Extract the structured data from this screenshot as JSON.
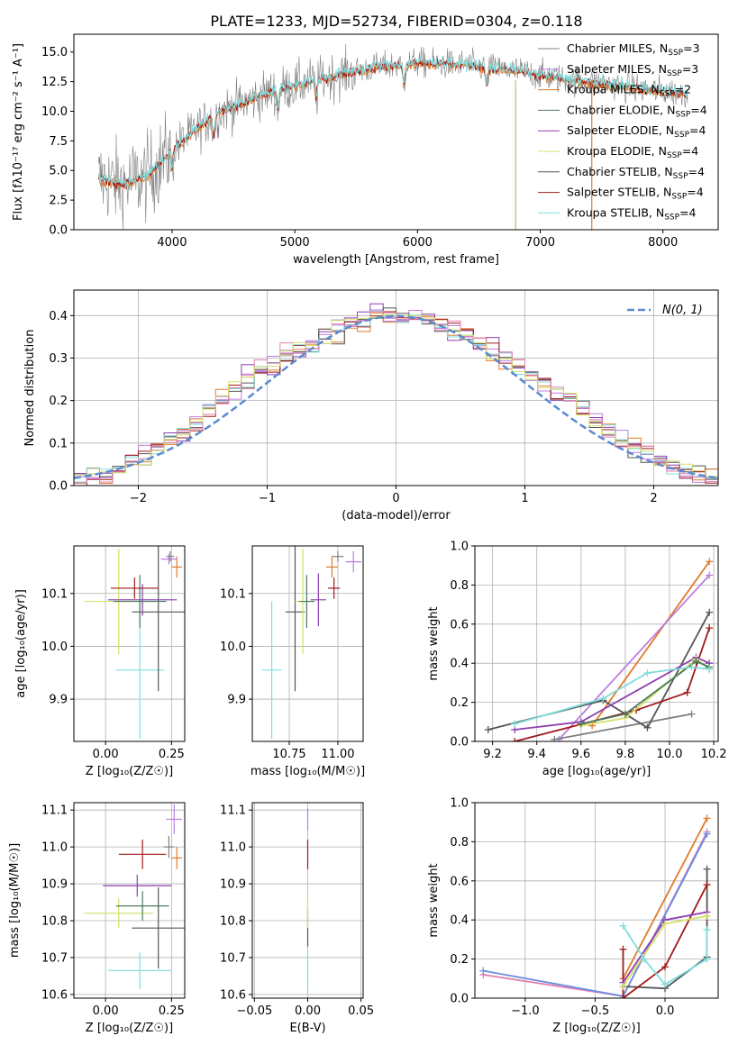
{
  "figure_title": "PLATE=1233, MJD=52734, FIBERID=0304, z=0.118",
  "colors": {
    "Chabrier MILES": "#808080",
    "Salpeter MILES": "#bb7fe0",
    "Kroupa MILES": "#e07b2a",
    "Chabrier ELODIE": "#4a7a5a",
    "Salpeter ELODIE": "#8e3fb0",
    "Kroupa ELODIE": "#d4e06a",
    "Chabrier STELIB": "#555555",
    "Salpeter STELIB": "#a01a1a",
    "Kroupa STELIB": "#7fdcdc",
    "normal_curve": "#5a8ad0",
    "pink_series": "#e07fb0",
    "blue_series": "#6a8ee0",
    "green_series": "#7cbf4a"
  },
  "chart_data": [
    {
      "id": "spectrum",
      "type": "line",
      "xlabel": "wavelength [Angstrom, rest frame]",
      "ylabel": "Flux [fλ10⁻¹⁷ erg cm⁻² s⁻¹ A⁻¹]",
      "xlim": [
        3200,
        8450
      ],
      "ylim": [
        0,
        16.5
      ],
      "xticks": [
        4000,
        5000,
        6000,
        7000,
        8000
      ],
      "yticks": [
        0.0,
        2.5,
        5.0,
        7.5,
        10.0,
        12.5,
        15.0
      ],
      "ytick_labels": [
        "0.0",
        "2.5",
        "5.0",
        "7.5",
        "10.0",
        "12.5",
        "15.0"
      ],
      "grid": false,
      "legend_position": "right",
      "legend": [
        {
          "name": "Chabrier MILES",
          "nssp": "3"
        },
        {
          "name": "Salpeter MILES",
          "nssp": "3"
        },
        {
          "name": "Kroupa MILES",
          "nssp": "2"
        },
        {
          "name": "Chabrier ELODIE",
          "nssp": "4"
        },
        {
          "name": "Salpeter ELODIE",
          "nssp": "4"
        },
        {
          "name": "Kroupa ELODIE",
          "nssp": "4"
        },
        {
          "name": "Chabrier STELIB",
          "nssp": "4"
        },
        {
          "name": "Salpeter STELIB",
          "nssp": "4"
        },
        {
          "name": "Kroupa STELIB",
          "nssp": "4"
        }
      ],
      "continuum_knots": {
        "x": [
          3400,
          3600,
          3800,
          4000,
          4200,
          4400,
          4800,
          5200,
          5600,
          6000,
          6400,
          6800,
          7200,
          7600,
          8000,
          8200
        ],
        "y": [
          4.3,
          3.8,
          4.5,
          6.7,
          8.5,
          10.0,
          11.6,
          12.7,
          13.6,
          14.1,
          13.9,
          13.4,
          12.7,
          12.2,
          11.7,
          11.5
        ]
      }
    },
    {
      "id": "residuals",
      "type": "histogram",
      "xlabel": "(data-model)/error",
      "ylabel": "Normed distribution",
      "xlim": [
        -2.5,
        2.5
      ],
      "ylim": [
        0,
        0.46
      ],
      "xticks": [
        -2,
        -1,
        0,
        1,
        2
      ],
      "xtick_labels": [
        "−2",
        "−1",
        "0",
        "1",
        "2"
      ],
      "yticks": [
        0.0,
        0.1,
        0.2,
        0.3,
        0.4
      ],
      "ytick_labels": [
        "0.0",
        "0.1",
        "0.2",
        "0.3",
        "0.4"
      ],
      "grid": true,
      "legend_position": "top-right",
      "legend": [
        "N(0, 1)"
      ]
    },
    {
      "id": "age_vs_Z",
      "type": "errorbar",
      "xlabel": "Z [log₁₀(Z/Z☉)]",
      "ylabel": "age  [log₁₀(age/yr)]",
      "xlim": [
        -0.12,
        0.3
      ],
      "ylim": [
        9.82,
        10.19
      ],
      "xticks": [
        0.0,
        0.25
      ],
      "xtick_labels": [
        "0.00",
        "0.25"
      ],
      "yticks": [
        9.9,
        10.0,
        10.1
      ],
      "ytick_labels": [
        "9.9",
        "10.0",
        "10.1"
      ],
      "grid": true,
      "points": [
        {
          "s": "Kroupa STELIB",
          "x": 0.13,
          "xe": 0.09,
          "y": 9.955,
          "ye": 0.13
        },
        {
          "s": "Kroupa ELODIE",
          "x": 0.05,
          "xe": 0.13,
          "y": 10.085,
          "ye": 0.1
        },
        {
          "s": "Chabrier STELIB",
          "x": 0.2,
          "xe": 0.1,
          "y": 10.065,
          "ye": 0.15
        },
        {
          "s": "Salpeter ELODIE",
          "x": 0.14,
          "xe": 0.13,
          "y": 10.088,
          "ye": 0.03
        },
        {
          "s": "Chabrier ELODIE",
          "x": 0.13,
          "xe": 0.1,
          "y": 10.085,
          "ye": 0.05
        },
        {
          "s": "Salpeter STELIB",
          "x": 0.11,
          "xe": 0.09,
          "y": 10.11,
          "ye": 0.02
        },
        {
          "s": "Kroupa MILES",
          "x": 0.27,
          "xe": 0.02,
          "y": 10.15,
          "ye": 0.02
        },
        {
          "s": "Salpeter MILES",
          "x": 0.24,
          "xe": 0.03,
          "y": 10.165,
          "ye": 0.01
        },
        {
          "s": "Chabrier MILES",
          "x": 0.245,
          "xe": 0.015,
          "y": 10.17,
          "ye": 0.01
        }
      ]
    },
    {
      "id": "age_vs_mass",
      "type": "errorbar",
      "xlabel": "mass [log₁₀(M/M☉)]",
      "xlim": [
        10.56,
        11.13
      ],
      "ylim": [
        9.82,
        10.19
      ],
      "xticks": [
        10.75,
        11.0
      ],
      "xtick_labels": [
        "10.75",
        "11.00"
      ],
      "yticks": [
        9.9,
        10.0,
        10.1
      ],
      "ytick_labels": [
        "9.9",
        "10.0",
        "10.1"
      ],
      "grid": true,
      "points": [
        {
          "s": "Kroupa STELIB",
          "x": 10.66,
          "xe": 0.05,
          "y": 9.955,
          "ye": 0.13
        },
        {
          "s": "Chabrier STELIB",
          "x": 10.78,
          "xe": 0.05,
          "y": 10.065,
          "ye": 0.15
        },
        {
          "s": "Kroupa ELODIE",
          "x": 10.82,
          "xe": 0.04,
          "y": 10.085,
          "ye": 0.1
        },
        {
          "s": "Chabrier ELODIE",
          "x": 10.84,
          "xe": 0.04,
          "y": 10.085,
          "ye": 0.05
        },
        {
          "s": "Salpeter ELODIE",
          "x": 10.9,
          "xe": 0.04,
          "y": 10.088,
          "ye": 0.05
        },
        {
          "s": "Salpeter STELIB",
          "x": 10.98,
          "xe": 0.03,
          "y": 10.11,
          "ye": 0.02
        },
        {
          "s": "Kroupa MILES",
          "x": 10.97,
          "xe": 0.03,
          "y": 10.15,
          "ye": 0.02
        },
        {
          "s": "Salpeter MILES",
          "x": 11.08,
          "xe": 0.04,
          "y": 10.16,
          "ye": 0.02
        },
        {
          "s": "Chabrier MILES",
          "x": 11.0,
          "xe": 0.03,
          "y": 10.17,
          "ye": 0.01
        }
      ]
    },
    {
      "id": "weight_vs_age",
      "type": "line",
      "xlabel": "age  [log₁₀(age/yr)]",
      "ylabel": "mass weight",
      "xlim": [
        9.12,
        10.22
      ],
      "ylim": [
        0,
        1.0
      ],
      "xticks": [
        9.2,
        9.4,
        9.6,
        9.8,
        10.0,
        10.2
      ],
      "xtick_labels": [
        "9.2",
        "9.4",
        "9.6",
        "9.8",
        "10.0",
        "10.2"
      ],
      "yticks": [
        0.0,
        0.2,
        0.4,
        0.6,
        0.8,
        1.0
      ],
      "ytick_labels": [
        "0.0",
        "0.2",
        "0.4",
        "0.6",
        "0.8",
        "1.0"
      ],
      "grid": true,
      "series": [
        {
          "s": "Kroupa MILES",
          "x": [
            9.65,
            10.18
          ],
          "y": [
            0.08,
            0.92
          ]
        },
        {
          "s": "Salpeter MILES",
          "x": [
            9.5,
            10.18
          ],
          "y": [
            0.01,
            0.85
          ]
        },
        {
          "s": "Chabrier MILES",
          "x": [
            9.48,
            10.1
          ],
          "y": [
            0.01,
            0.14
          ]
        },
        {
          "s": "Chabrier STELIB",
          "x": [
            9.18,
            9.7,
            9.9,
            10.18
          ],
          "y": [
            0.06,
            0.21,
            0.07,
            0.66
          ]
        },
        {
          "s": "Salpeter STELIB",
          "x": [
            9.3,
            9.85,
            10.08,
            10.18
          ],
          "y": [
            0.0,
            0.16,
            0.25,
            0.58
          ]
        },
        {
          "s": "Salpeter ELODIE",
          "x": [
            9.3,
            9.6,
            10.12,
            10.18
          ],
          "y": [
            0.06,
            0.1,
            0.43,
            0.4
          ]
        },
        {
          "s": "Kroupa ELODIE",
          "x": [
            9.6,
            9.8,
            10.12,
            10.18
          ],
          "y": [
            0.08,
            0.12,
            0.42,
            0.37
          ]
        },
        {
          "s": "Chabrier ELODIE",
          "x": [
            9.6,
            9.8,
            10.12,
            10.18
          ],
          "y": [
            0.09,
            0.14,
            0.41,
            0.38
          ]
        },
        {
          "s": "Kroupa STELIB",
          "x": [
            9.3,
            9.7,
            9.9,
            10.1,
            10.18
          ],
          "y": [
            0.09,
            0.22,
            0.35,
            0.38,
            0.37
          ]
        }
      ]
    },
    {
      "id": "mass_vs_Z",
      "type": "errorbar",
      "xlabel": "Z [log₁₀(Z/Z☉)]",
      "ylabel": "mass [log₁₀(M/M☉)]",
      "xlim": [
        -0.12,
        0.3
      ],
      "ylim": [
        10.59,
        11.12
      ],
      "xticks": [
        0.0,
        0.25
      ],
      "xtick_labels": [
        "0.00",
        "0.25"
      ],
      "yticks": [
        10.6,
        10.7,
        10.8,
        10.9,
        11.0,
        11.1
      ],
      "ytick_labels": [
        "10.6",
        "10.7",
        "10.8",
        "10.9",
        "11.0",
        "11.1"
      ],
      "grid": true,
      "points": [
        {
          "s": "Kroupa STELIB",
          "x": 0.13,
          "xe": 0.12,
          "y": 10.665,
          "ye": 0.05
        },
        {
          "s": "Chabrier STELIB",
          "x": 0.2,
          "xe": 0.1,
          "y": 10.78,
          "ye": 0.11
        },
        {
          "s": "Kroupa ELODIE",
          "x": 0.05,
          "xe": 0.13,
          "y": 10.82,
          "ye": 0.04
        },
        {
          "s": "Chabrier ELODIE",
          "x": 0.14,
          "xe": 0.1,
          "y": 10.84,
          "ye": 0.04
        },
        {
          "s": "Salpeter ELODIE",
          "x": 0.12,
          "xe": 0.13,
          "y": 10.895,
          "ye": 0.03
        },
        {
          "s": "Salpeter STELIB",
          "x": 0.14,
          "xe": 0.09,
          "y": 10.98,
          "ye": 0.04
        },
        {
          "s": "Kroupa MILES",
          "x": 0.27,
          "xe": 0.02,
          "y": 10.97,
          "ye": 0.03
        },
        {
          "s": "Chabrier MILES",
          "x": 0.24,
          "xe": 0.02,
          "y": 11.0,
          "ye": 0.03
        },
        {
          "s": "Salpeter MILES",
          "x": 0.26,
          "xe": 0.03,
          "y": 11.075,
          "ye": 0.04
        }
      ]
    },
    {
      "id": "mass_vs_ebv",
      "type": "errorbar",
      "xlabel": "E(B-V)",
      "xlim": [
        -0.052,
        0.052
      ],
      "ylim": [
        10.59,
        11.12
      ],
      "xticks": [
        -0.05,
        0.0,
        0.05
      ],
      "xtick_labels": [
        "−0.05",
        "0.00",
        "0.05"
      ],
      "yticks": [
        10.6,
        10.7,
        10.8,
        10.9,
        11.0,
        11.1
      ],
      "ytick_labels": [
        "10.6",
        "10.7",
        "10.8",
        "10.9",
        "11.0",
        "11.1"
      ],
      "grid": true,
      "points": [
        {
          "s": "Kroupa STELIB",
          "x": 0.0,
          "xe": 0.0,
          "y": 10.665,
          "ye": 0.05
        },
        {
          "s": "Chabrier STELIB",
          "x": 0.0,
          "xe": 0.0,
          "y": 10.78,
          "ye": 0.05
        },
        {
          "s": "Kroupa ELODIE",
          "x": 0.0,
          "xe": 0.0,
          "y": 10.82,
          "ye": 0.04
        },
        {
          "s": "Salpeter STELIB",
          "x": 0.0,
          "xe": 0.0,
          "y": 10.98,
          "ye": 0.04
        },
        {
          "s": "Salpeter MILES",
          "x": 0.0,
          "xe": 0.0,
          "y": 11.075,
          "ye": 0.03
        }
      ]
    },
    {
      "id": "weight_vs_Z",
      "type": "line",
      "xlabel": "Z [log₁₀(Z/Z☉)]",
      "ylabel": "mass weight",
      "xlim": [
        -1.36,
        0.38
      ],
      "ylim": [
        0,
        1.0
      ],
      "xticks": [
        -1.0,
        -0.5,
        0.0
      ],
      "xtick_labels": [
        "−1.0",
        "−0.5",
        "0.0"
      ],
      "yticks": [
        0.0,
        0.2,
        0.4,
        0.6,
        0.8,
        1.0
      ],
      "ytick_labels": [
        "0.0",
        "0.2",
        "0.4",
        "0.6",
        "0.8",
        "1.0"
      ],
      "grid": true,
      "series": [
        {
          "s": "Kroupa MILES",
          "x": [
            -0.3,
            0.3
          ],
          "y": [
            0.1,
            0.92
          ]
        },
        {
          "s": "pink",
          "x": [
            -1.3,
            -0.3,
            0.3
          ],
          "y": [
            0.12,
            0.01,
            0.85
          ]
        },
        {
          "s": "blue",
          "x": [
            -1.3,
            -0.3,
            0.3
          ],
          "y": [
            0.14,
            0.01,
            0.84
          ]
        },
        {
          "s": "Chabrier STELIB",
          "x": [
            -0.3,
            0.0,
            0.3,
            0.3
          ],
          "y": [
            0.06,
            0.05,
            0.21,
            0.66
          ]
        },
        {
          "s": "Salpeter STELIB",
          "x": [
            -0.3,
            -0.3,
            0.0,
            0.3
          ],
          "y": [
            0.25,
            0.0,
            0.16,
            0.58
          ]
        },
        {
          "s": "Salpeter ELODIE",
          "x": [
            -0.3,
            0.0,
            0.3
          ],
          "y": [
            0.08,
            0.4,
            0.44
          ]
        },
        {
          "s": "Kroupa ELODIE",
          "x": [
            -0.3,
            0.0,
            0.3
          ],
          "y": [
            0.06,
            0.38,
            0.42
          ]
        },
        {
          "s": "Kroupa STELIB",
          "x": [
            -0.3,
            -0.15,
            0.0,
            0.3,
            0.3
          ],
          "y": [
            0.37,
            0.2,
            0.07,
            0.2,
            0.35
          ]
        }
      ]
    }
  ]
}
